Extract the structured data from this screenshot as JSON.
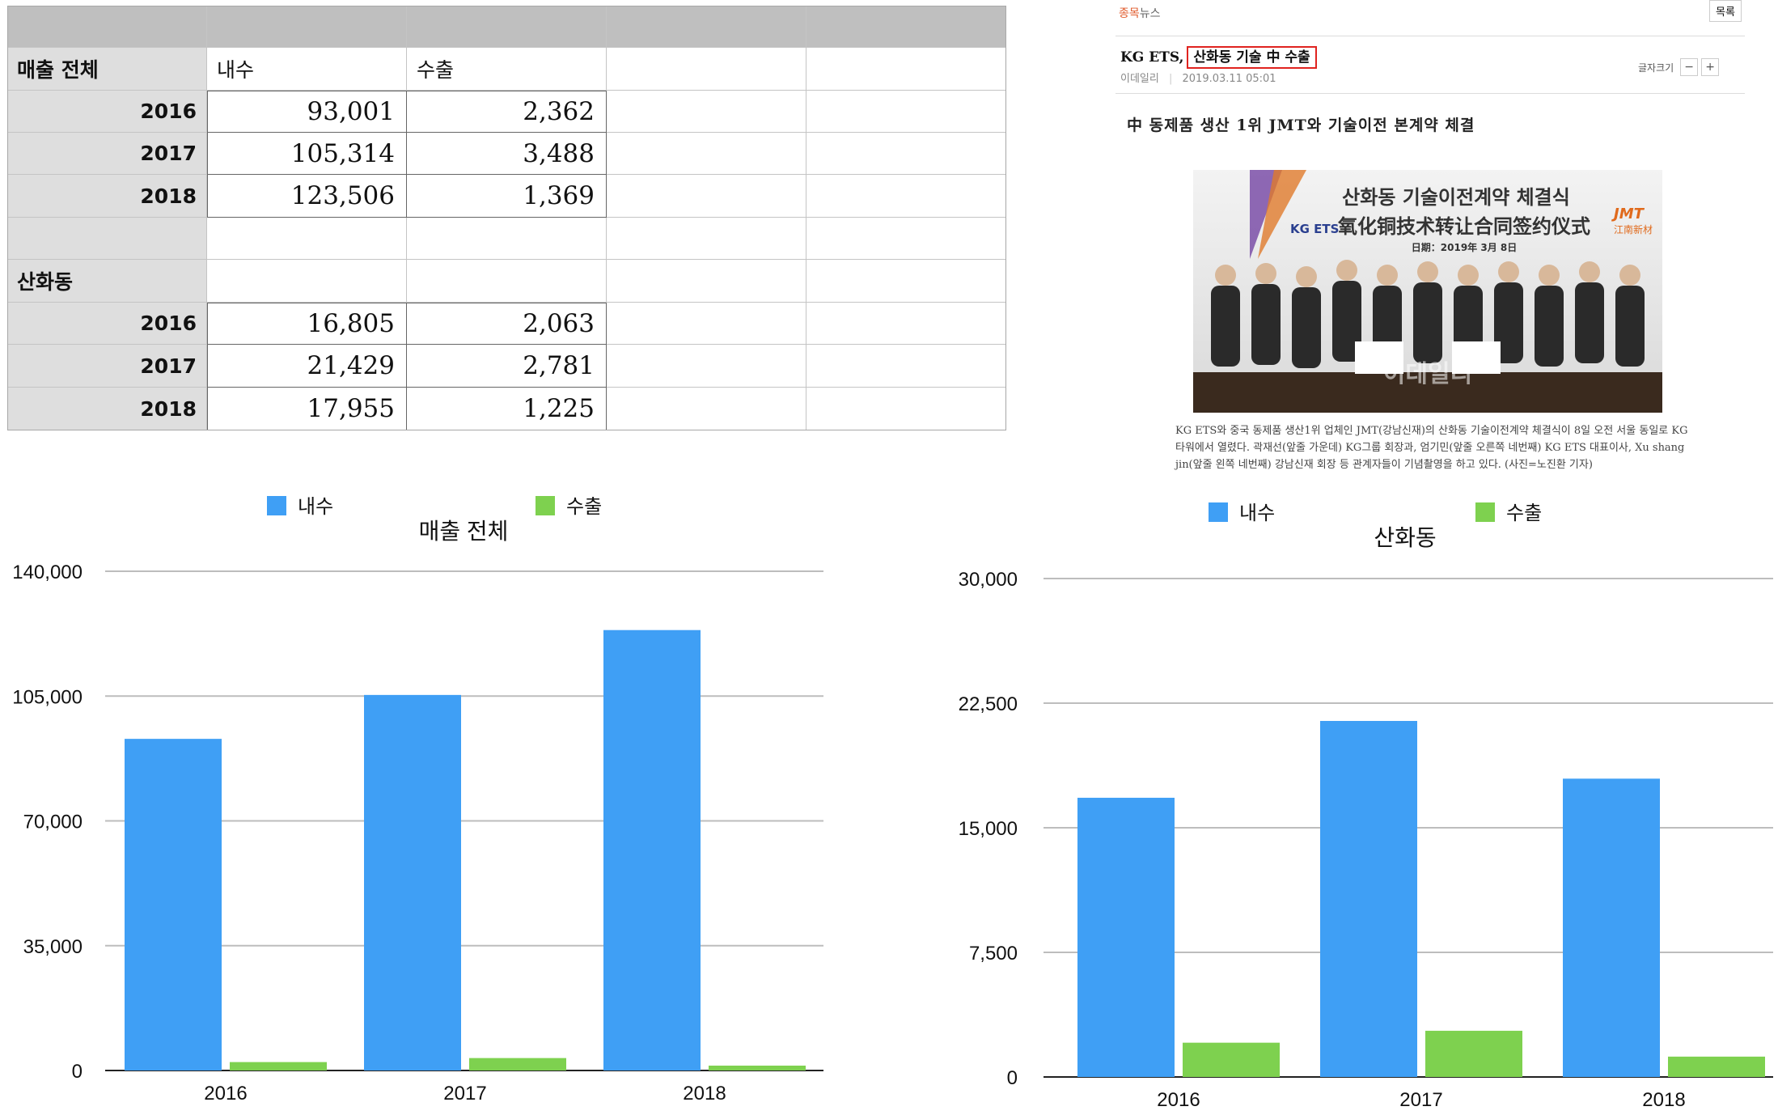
{
  "spreadsheet": {
    "total_label": "매출 전체",
    "sanhwadong_label": "산화동",
    "col_domestic": "내수",
    "col_export": "수출",
    "total_rows": [
      {
        "year": "2016",
        "domestic": "93,001",
        "export": "2,362"
      },
      {
        "year": "2017",
        "domestic": "105,314",
        "export": "3,488"
      },
      {
        "year": "2018",
        "domestic": "123,506",
        "export": "1,369"
      }
    ],
    "sanhwadong_rows": [
      {
        "year": "2016",
        "domestic": "16,805",
        "export": "2,063"
      },
      {
        "year": "2017",
        "domestic": "21,429",
        "export": "2,781"
      },
      {
        "year": "2018",
        "domestic": "17,955",
        "export": "1,225"
      }
    ]
  },
  "news": {
    "section_a": "종목",
    "section_b": "뉴스",
    "list_button": "목록",
    "headline_prefix": "KG ETS,",
    "headline_highlight": "산화동 기술 中 수출",
    "source": "이데일리",
    "datetime": "2019.03.11 05:01",
    "font_size_label": "글자크기",
    "font_minus": "−",
    "font_plus": "+",
    "subheadline": "中 동제품 생산 1위 JMT와 기술이전 본계약 체결",
    "photo": {
      "banner_line1": "산화동 기술이전계약 체결식",
      "banner_line2": "氧化铜技术转让合同签约仪式",
      "banner_date": "日期：2019年 3月 8日",
      "logo_left": "KG ETS",
      "logo_right_top": "JMT",
      "logo_right_bottom": "江南新材",
      "watermark": "이데일리"
    },
    "caption": "KG ETS와 중국 동제품 생산1위 업체인 JMT(강남신재)의 산화동 기술이전계약 체결식이 8일 오전 서울 동일로 KG타워에서 열렸다. 곽재선(앞줄 가운데) KG그룹 회장과, 엄기민(앞줄 오른쪽 네번째) KG ETS 대표이사, Xu shang jin(앞줄 왼쪽 네번째) 강남신재 회장 등 관계자들이 기념촬영을 하고 있다. (사진=노진환 기자)"
  },
  "colors": {
    "domestic": "#3f9ff5",
    "export": "#7ed14f",
    "grid": "#bdbdbd",
    "headline_box": "#e0231f"
  },
  "chart_data": [
    {
      "type": "bar",
      "title": "매출 전체",
      "categories": [
        "2016",
        "2017",
        "2018"
      ],
      "series": [
        {
          "name": "내수",
          "values": [
            93001,
            105314,
            123506
          ]
        },
        {
          "name": "수출",
          "values": [
            2362,
            3488,
            1369
          ]
        }
      ],
      "ylim": [
        0,
        140000
      ],
      "yticks": [
        0,
        35000,
        70000,
        105000,
        140000
      ],
      "ytick_labels": [
        "0",
        "35,000",
        "70,000",
        "105,000",
        "140,000"
      ],
      "grid": true,
      "legend": "top"
    },
    {
      "type": "bar",
      "title": "산화동",
      "categories": [
        "2016",
        "2017",
        "2018"
      ],
      "series": [
        {
          "name": "내수",
          "values": [
            16805,
            21429,
            17955
          ]
        },
        {
          "name": "수출",
          "values": [
            2063,
            2781,
            1225
          ]
        }
      ],
      "ylim": [
        0,
        30000
      ],
      "yticks": [
        0,
        7500,
        15000,
        22500,
        30000
      ],
      "ytick_labels": [
        "0",
        "7,500",
        "15,000",
        "22,500",
        "30,000"
      ],
      "grid": true,
      "legend": "top"
    }
  ]
}
